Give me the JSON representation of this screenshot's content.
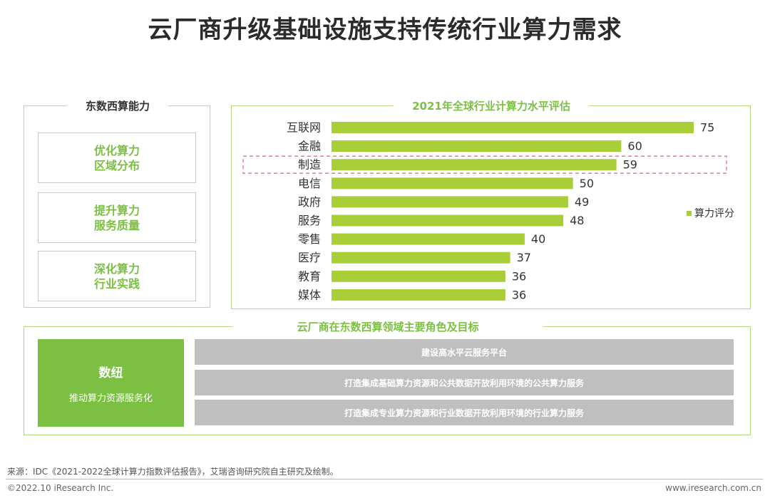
{
  "title": "云厂商升级基础设施支持传统行业算力需求",
  "left_panel": {
    "title": "东数西算能力",
    "items": [
      {
        "line1": "优化算力",
        "line2": "区域分布"
      },
      {
        "line1": "提升算力",
        "line2": "服务质量"
      },
      {
        "line1": "深化算力",
        "line2": "行业实践"
      }
    ]
  },
  "chart_data": {
    "type": "bar",
    "orientation": "horizontal",
    "title": "2021年全球行业计算力水平评估",
    "categories": [
      "互联网",
      "金融",
      "制造",
      "电信",
      "政府",
      "服务",
      "零售",
      "医疗",
      "教育",
      "媒体"
    ],
    "series": [
      {
        "name": "算力评分",
        "values": [
          75,
          60,
          59,
          50,
          49,
          48,
          40,
          37,
          36,
          36
        ],
        "color": "#a9cf38"
      }
    ],
    "highlight": "制造",
    "highlight_color": "#e57373",
    "xlim": [
      0,
      80
    ],
    "legend": "right",
    "grid": false
  },
  "bottom_panel": {
    "title": "云厂商在东数西算领域主要角色及目标",
    "role_name": "数纽",
    "role_desc": "推动算力资源服务化",
    "goals": [
      "建设高水平云服务平台",
      "打造集成基础算力资源和公共数据开放利用环境的公共算力服务",
      "打造集成专业算力资源和行业数据开放利用环境的行业算力服务"
    ]
  },
  "footer": {
    "source": "来源：IDC《2021-2022全球计算力指数评估报告》，艾瑞咨询研究院自主研究及绘制。",
    "copyright": "©2022.10 iResearch Inc.",
    "url": "www.iresearch.com.cn"
  },
  "colors": {
    "accent": "#7bc043",
    "bar": "#a9cf38",
    "goal_bg": "#bfbfbf"
  }
}
